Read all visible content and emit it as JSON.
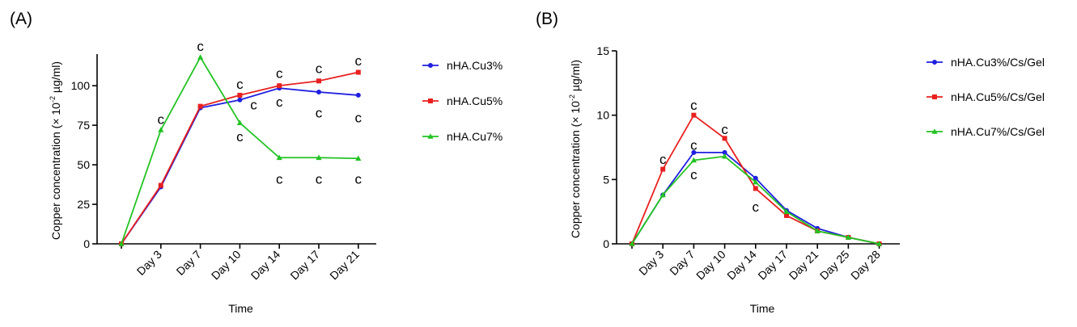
{
  "chart_data": [
    {
      "panel": "(A)",
      "type": "line",
      "title": "",
      "xlabel": "Time",
      "ylabel_pre": "Copper concentration (× 10",
      "ylabel_sup": "-2",
      "ylabel_post": " µg/ml)",
      "categories": [
        "",
        "Day 3",
        "Day 7",
        "Day 10",
        "Day 14",
        "Day 17",
        "Day 21"
      ],
      "ylim": [
        0,
        120
      ],
      "yticks": [
        0,
        25,
        50,
        75,
        100
      ],
      "series": [
        {
          "name": "nHA.Cu3%",
          "color": "#1f1fe0",
          "marker": "circle",
          "values": [
            0,
            36,
            86,
            91,
            98.5,
            96,
            94
          ]
        },
        {
          "name": "nHA.Cu5%",
          "color": "#e82020",
          "marker": "square",
          "values": [
            0,
            37,
            87,
            94,
            100,
            103,
            108.5
          ]
        },
        {
          "name": "nHA.Cu7%",
          "color": "#22c322",
          "marker": "triangle",
          "values": [
            0,
            72,
            118,
            76.5,
            54.5,
            54.5,
            54
          ]
        }
      ],
      "annotations": [
        {
          "text": "c",
          "x": 1,
          "y": 79
        },
        {
          "text": "c",
          "x": 2,
          "y": 125
        },
        {
          "text": "c",
          "x": 3,
          "y": 101
        },
        {
          "text": "c",
          "x": 3,
          "y": 68
        },
        {
          "text": "c",
          "x": 3.35,
          "y": 88
        },
        {
          "text": "c",
          "x": 4,
          "y": 108
        },
        {
          "text": "c",
          "x": 4,
          "y": 90
        },
        {
          "text": "c",
          "x": 4,
          "y": 41
        },
        {
          "text": "c",
          "x": 5,
          "y": 111
        },
        {
          "text": "c",
          "x": 5,
          "y": 83
        },
        {
          "text": "c",
          "x": 5,
          "y": 41
        },
        {
          "text": "c",
          "x": 6,
          "y": 116
        },
        {
          "text": "c",
          "x": 6,
          "y": 80
        },
        {
          "text": "c",
          "x": 6,
          "y": 41
        }
      ],
      "legend": "right"
    },
    {
      "panel": "(B)",
      "type": "line",
      "title": "",
      "xlabel": "Time",
      "ylabel_pre": "Copper concentration (× 10",
      "ylabel_sup": "-2",
      "ylabel_post": " µg/ml)",
      "categories": [
        "",
        "Day 3",
        "Day 7",
        "Day 10",
        "Day 14",
        "Day 17",
        "Day 21",
        "Day 25",
        "Day 28"
      ],
      "ylim": [
        0,
        15
      ],
      "yticks": [
        0,
        5,
        10,
        15
      ],
      "series": [
        {
          "name": "nHA.Cu3%/Cs/Gel",
          "color": "#1f1fe0",
          "marker": "circle",
          "values": [
            0,
            3.8,
            7.1,
            7.1,
            5.1,
            2.6,
            1.2,
            0.5,
            0
          ]
        },
        {
          "name": "nHA.Cu5%/Cs/Gel",
          "color": "#e82020",
          "marker": "square",
          "values": [
            0,
            5.8,
            10,
            8.2,
            4.3,
            2.2,
            1.0,
            0.5,
            0
          ]
        },
        {
          "name": "nHA.Cu7%/Cs/Gel",
          "color": "#22c322",
          "marker": "triangle",
          "values": [
            0,
            3.8,
            6.5,
            6.8,
            4.8,
            2.5,
            1.0,
            0.5,
            0
          ]
        }
      ],
      "annotations": [
        {
          "text": "c",
          "x": 1,
          "y": 6.6
        },
        {
          "text": "c",
          "x": 2,
          "y": 10.8
        },
        {
          "text": "c",
          "x": 2,
          "y": 7.7
        },
        {
          "text": "c",
          "x": 2,
          "y": 5.4
        },
        {
          "text": "c",
          "x": 3,
          "y": 8.9
        },
        {
          "text": "c",
          "x": 4,
          "y": 2.9
        }
      ],
      "legend": "right"
    }
  ]
}
